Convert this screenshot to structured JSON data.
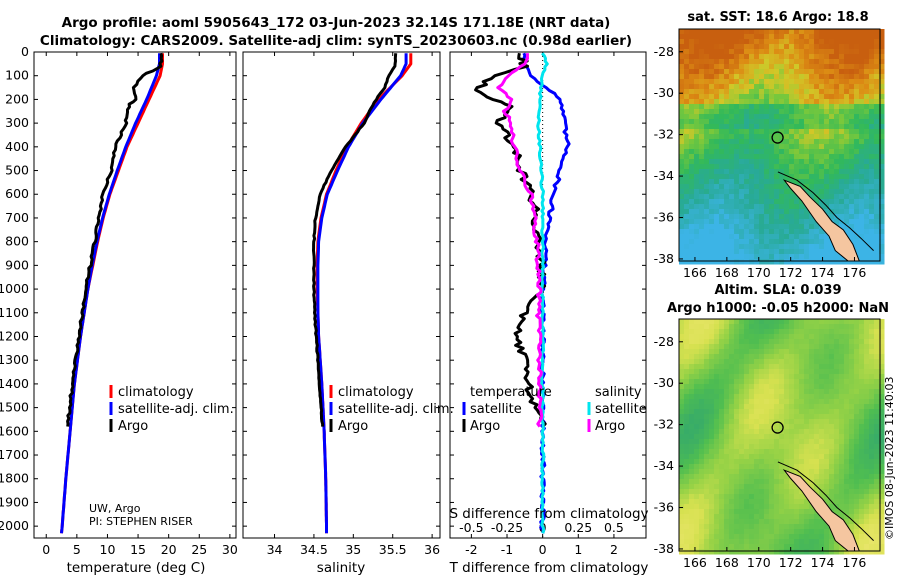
{
  "title_line1": "Argo profile: aoml 5905643_172 03-Jun-2023 32.14S 171.18E (NRT data)",
  "title_line2": "Climatology: CARS2009. Satellite-adj clim: synTS_20230603.nc (0.98d earlier)",
  "sst_title": "sat. SST: 18.6 Argo: 18.8",
  "sla_title1": "Altim. SLA: 0.039",
  "sla_title2": "Argo h1000: -0.05 h2000: NaN",
  "credit_vertical": "©IMOS 08-Jun-2023 11:40:03",
  "panel1_note1": "UW, Argo",
  "panel1_note2": "PI: STEPHEN RISER",
  "colors": {
    "climatology": "#ff0000",
    "satellite": "#0000ff",
    "argo": "#000000",
    "sal_sat": "#00e5ee",
    "sal_argo": "#ff00ff"
  },
  "chart_data": [
    {
      "type": "line",
      "title": "",
      "xlabel": "temperature (deg C)",
      "ylabel": "",
      "xlim": [
        -2,
        31
      ],
      "ylim": [
        2050,
        0
      ],
      "xticks": [
        "0",
        "5",
        "10",
        "15",
        "20",
        "25",
        "30"
      ],
      "yticks": [
        "0",
        "100",
        "200",
        "300",
        "400",
        "500",
        "600",
        "700",
        "800",
        "900",
        "1000",
        "1100",
        "1200",
        "1300",
        "1400",
        "1500",
        "1600",
        "1700",
        "1800",
        "1900",
        "2000"
      ],
      "legend": [
        "climatology",
        "satellite-adj. clim.",
        "Argo"
      ],
      "series": [
        {
          "name": "climatology",
          "depth": [
            5,
            50,
            100,
            200,
            300,
            400,
            500,
            600,
            700,
            800,
            900,
            1000,
            1200,
            1400,
            1600,
            1800,
            2000,
            2030
          ],
          "values": [
            19.0,
            19.0,
            18.6,
            16.8,
            15.0,
            13.2,
            11.8,
            10.4,
            9.3,
            8.4,
            7.6,
            6.8,
            5.6,
            4.6,
            3.9,
            3.2,
            2.6,
            2.5
          ]
        },
        {
          "name": "satellite-adj. clim.",
          "depth": [
            5,
            50,
            100,
            200,
            300,
            400,
            500,
            600,
            700,
            800,
            900,
            1000,
            1200,
            1400,
            1600,
            1800,
            2000,
            2030
          ],
          "values": [
            18.5,
            18.5,
            18.0,
            16.4,
            14.6,
            13.0,
            11.6,
            10.3,
            9.2,
            8.3,
            7.5,
            6.8,
            5.6,
            4.6,
            3.9,
            3.2,
            2.6,
            2.5
          ]
        },
        {
          "name": "Argo",
          "depth": [
            5,
            60,
            90,
            110,
            150,
            200,
            220,
            300,
            400,
            500,
            600,
            700,
            800,
            900,
            1000,
            1100,
            1200,
            1300,
            1400,
            1500,
            1580
          ],
          "values": [
            18.8,
            18.7,
            16.5,
            15.3,
            14.3,
            14.8,
            13.5,
            13.0,
            11.3,
            10.6,
            9.3,
            8.6,
            7.9,
            7.2,
            6.4,
            5.9,
            5.3,
            4.8,
            4.3,
            3.8,
            3.5
          ]
        }
      ]
    },
    {
      "type": "line",
      "title": "",
      "xlabel": "salinity",
      "ylabel": "",
      "xlim": [
        33.6,
        36.1
      ],
      "ylim": [
        2050,
        0
      ],
      "xticks": [
        "34",
        "34.5",
        "35",
        "35.5",
        "36"
      ],
      "legend": [
        "climatology",
        "satellite-adj. clim.",
        "Argo"
      ],
      "series": [
        {
          "name": "climatology",
          "depth": [
            5,
            50,
            100,
            200,
            300,
            400,
            500,
            600,
            700,
            800,
            900,
            1000,
            1100,
            1200,
            1400,
            1600,
            1800,
            2000,
            2030
          ],
          "values": [
            35.73,
            35.73,
            35.62,
            35.32,
            35.1,
            34.92,
            34.78,
            34.66,
            34.59,
            34.55,
            34.54,
            34.54,
            34.55,
            34.56,
            34.6,
            34.63,
            34.65,
            34.66,
            34.66
          ]
        },
        {
          "name": "satellite-adj. clim.",
          "depth": [
            5,
            50,
            100,
            200,
            300,
            400,
            500,
            600,
            700,
            800,
            900,
            1000,
            1100,
            1200,
            1400,
            1600,
            1800,
            2000,
            2030
          ],
          "values": [
            35.67,
            35.67,
            35.6,
            35.35,
            35.12,
            34.94,
            34.8,
            34.67,
            34.6,
            34.56,
            34.55,
            34.55,
            34.55,
            34.56,
            34.6,
            34.63,
            34.65,
            34.66,
            34.66
          ]
        },
        {
          "name": "Argo",
          "depth": [
            5,
            60,
            100,
            150,
            200,
            250,
            300,
            400,
            500,
            600,
            700,
            800,
            900,
            1000,
            1100,
            1200,
            1300,
            1400,
            1500,
            1580
          ],
          "values": [
            35.54,
            35.53,
            35.45,
            35.4,
            35.29,
            35.2,
            35.14,
            34.9,
            34.72,
            34.58,
            34.52,
            34.5,
            34.5,
            34.5,
            34.51,
            34.53,
            34.55,
            34.57,
            34.59,
            34.61
          ]
        }
      ]
    },
    {
      "type": "line",
      "title": "",
      "xlabel": "T difference from climatology",
      "xlabel2": "S difference from climatology",
      "ylabel": "",
      "xlim": [
        -2.6,
        2.9
      ],
      "ylim": [
        2050,
        0
      ],
      "xticks": [
        "-2",
        "-1",
        "0",
        "1",
        "2"
      ],
      "xticks_s": [
        "-0.5",
        "-0.25",
        "0",
        "0.25",
        "0.5"
      ],
      "legend_temperature": [
        "temperature",
        "satellite",
        "Argo"
      ],
      "legend_salinity": [
        "salinity",
        "satellite",
        "Argo"
      ],
      "series": [
        {
          "name": "temperature satellite",
          "depth": [
            5,
            50,
            100,
            200,
            300,
            400,
            500,
            600,
            700,
            800,
            900,
            1000,
            1200,
            1600,
            2030
          ],
          "values": [
            -0.5,
            -0.5,
            -0.3,
            0.5,
            0.6,
            0.7,
            0.5,
            0.3,
            0.2,
            0.1,
            0.05,
            0.0,
            0.0,
            0.0,
            0.0
          ]
        },
        {
          "name": "temperature Argo",
          "depth": [
            5,
            60,
            100,
            150,
            180,
            200,
            230,
            300,
            400,
            500,
            600,
            700,
            800,
            900,
            1000,
            1100,
            1200,
            1300,
            1400,
            1500,
            1580
          ],
          "values": [
            -0.6,
            -0.5,
            -1.4,
            -1.8,
            -1.7,
            -1.4,
            -0.9,
            -1.2,
            -0.8,
            -0.6,
            -0.3,
            -0.2,
            -0.1,
            0.0,
            0.0,
            -0.5,
            -0.8,
            -0.5,
            -0.4,
            -0.2,
            0.0
          ]
        },
        {
          "name": "salinity satellite",
          "depth": [
            5,
            50,
            100,
            200,
            300,
            400,
            500,
            600,
            800,
            1000,
            1200,
            1400,
            1600,
            2030
          ],
          "values": [
            0.0,
            0.03,
            0.0,
            -0.02,
            -0.03,
            -0.02,
            -0.01,
            0.0,
            0.0,
            0.0,
            0.0,
            0.0,
            0.0,
            0.0
          ]
        },
        {
          "name": "salinity Argo",
          "depth": [
            5,
            50,
            100,
            150,
            200,
            250,
            300,
            400,
            500,
            600,
            700,
            800,
            900,
            1000,
            1100,
            1200,
            1300,
            1400,
            1500,
            1580
          ],
          "values": [
            -0.1,
            -0.12,
            -0.25,
            -0.3,
            -0.22,
            -0.27,
            -0.22,
            -0.2,
            -0.16,
            -0.08,
            -0.06,
            -0.04,
            -0.03,
            -0.02,
            -0.03,
            -0.02,
            -0.02,
            -0.02,
            -0.02,
            -0.02
          ]
        }
      ]
    },
    {
      "type": "heatmap",
      "title": "sat. SST: 18.6 Argo: 18.8",
      "xticks": [
        "166",
        "168",
        "170",
        "172",
        "174",
        "176"
      ],
      "yticks": [
        "-28",
        "-30",
        "-32",
        "-34",
        "-36",
        "-38"
      ],
      "xlim": [
        165.0,
        177.6
      ],
      "ylim": [
        -38.1,
        -26.9
      ],
      "float_position": {
        "lon": 171.18,
        "lat": -32.14
      }
    },
    {
      "type": "heatmap",
      "title": "Altim. SLA: 0.039 / Argo h1000: -0.05 h2000: NaN",
      "xticks": [
        "166",
        "168",
        "170",
        "172",
        "174",
        "176"
      ],
      "yticks": [
        "-28",
        "-30",
        "-32",
        "-34",
        "-36",
        "-38"
      ],
      "xlim": [
        165.0,
        177.6
      ],
      "ylim": [
        -38.1,
        -26.9
      ],
      "float_position": {
        "lon": 171.18,
        "lat": -32.14
      }
    }
  ]
}
